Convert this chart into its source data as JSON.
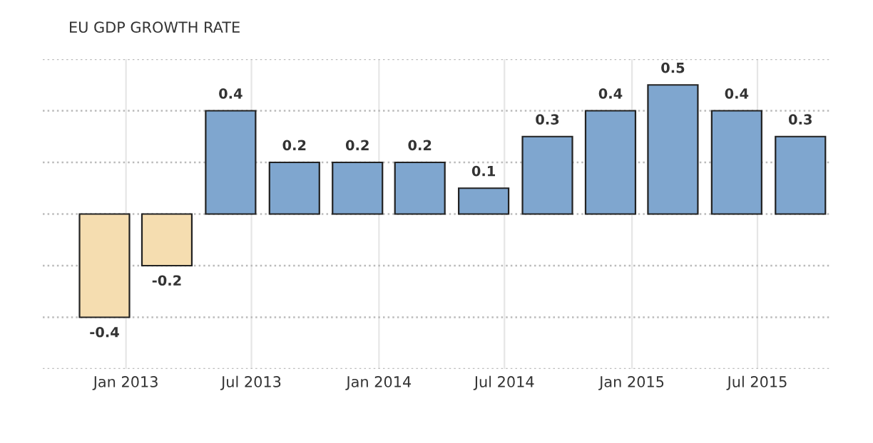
{
  "chart_data": {
    "type": "bar",
    "title": "EU GDP GROWTH RATE",
    "x": [
      "2012-12",
      "2013-03",
      "2013-06",
      "2013-09",
      "2013-12",
      "2014-03",
      "2014-06",
      "2014-09",
      "2014-12",
      "2015-03",
      "2015-06",
      "2015-09"
    ],
    "values": [
      -0.4,
      -0.2,
      0.4,
      0.2,
      0.2,
      0.2,
      0.1,
      0.3,
      0.4,
      0.5,
      0.4,
      0.3
    ],
    "colors": [
      "#f5ddb0",
      "#f5ddb0",
      "#7fa6cf",
      "#7fa6cf",
      "#7fa6cf",
      "#7fa6cf",
      "#7fa6cf",
      "#7fa6cf",
      "#7fa6cf",
      "#7fa6cf",
      "#7fa6cf",
      "#7fa6cf"
    ],
    "data_labels": true,
    "xlim": [
      "2012-09-03",
      "2015-10-16"
    ],
    "xticks": [
      {
        "value": "2013-01",
        "label": "Jan 2013"
      },
      {
        "value": "2013-07",
        "label": "Jul 2013"
      },
      {
        "value": "2014-01",
        "label": "Jan 2014"
      },
      {
        "value": "2014-07",
        "label": "Jul 2014"
      },
      {
        "value": "2015-01",
        "label": "Jan 2015"
      },
      {
        "value": "2015-07",
        "label": "Jul 2015"
      }
    ],
    "ylim": [
      -0.6,
      0.6
    ],
    "yticks": [
      {
        "value": -0.6,
        "label": null
      },
      {
        "value": -0.4,
        "label": null
      },
      {
        "value": -0.2,
        "label": null
      },
      {
        "value": 0,
        "label": null
      },
      {
        "value": 0.2,
        "label": null
      },
      {
        "value": 0.4,
        "label": null
      },
      {
        "value": 0.6,
        "label": null
      }
    ],
    "tick_labels": "x",
    "grid": true
  }
}
